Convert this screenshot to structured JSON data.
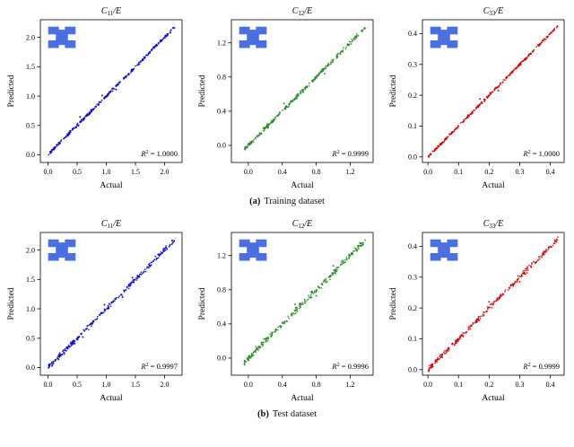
{
  "figure": {
    "background": "#ffffff",
    "icon_color": "#4a6fe3",
    "captions": [
      {
        "tag": "(a)",
        "text": "Training dataset"
      },
      {
        "tag": "(b)",
        "text": "Test dataset"
      }
    ]
  },
  "chart_data": [
    {
      "type": "scatter",
      "dataset": "training",
      "title": {
        "base": "C",
        "sub": "11",
        "rest": "/E"
      },
      "xlabel": "Actual",
      "ylabel": "Predicted",
      "tick_labels": [
        "0.0",
        "0.5",
        "1.0",
        "1.5",
        "2.0"
      ],
      "tick_values": [
        0,
        0.5,
        1,
        1.5,
        2
      ],
      "lim": [
        -0.13,
        2.3
      ],
      "color": "#0000cc",
      "r2": {
        "var": "R",
        "exp": "2",
        "eq": " = ",
        "value": "1.0000"
      },
      "scatter": {
        "n": 300,
        "min": 0.01,
        "max": 2.17,
        "noise": 0.012,
        "skew": 1.15,
        "seed": 7,
        "outliers": [
          [
            0.55,
            0.645
          ],
          [
            0.93,
            1.01
          ],
          [
            1.17,
            1.11
          ]
        ]
      }
    },
    {
      "type": "scatter",
      "dataset": "training",
      "title": {
        "base": "C",
        "sub": "12",
        "rest": "/E"
      },
      "xlabel": "Actual",
      "ylabel": "Predicted",
      "tick_labels": [
        "0.0",
        "0.4",
        "0.8",
        "1.2"
      ],
      "tick_values": [
        0,
        0.4,
        0.8,
        1.2
      ],
      "lim": [
        -0.2,
        1.47
      ],
      "color": "#228b22",
      "r2": {
        "var": "R",
        "exp": "2",
        "eq": " = ",
        "value": "0.9999"
      },
      "scatter": {
        "n": 300,
        "min": -0.05,
        "max": 1.38,
        "noise": 0.01,
        "skew": 1.1,
        "seed": 13,
        "outliers": [
          [
            0.42,
            0.49
          ],
          [
            0.9,
            0.84
          ]
        ]
      }
    },
    {
      "type": "scatter",
      "dataset": "training",
      "title": {
        "base": "C",
        "sub": "33",
        "rest": "/E"
      },
      "xlabel": "Actual",
      "ylabel": "Predicted",
      "tick_labels": [
        "0.0",
        "0.1",
        "0.2",
        "0.3",
        "0.4"
      ],
      "tick_values": [
        0,
        0.1,
        0.2,
        0.3,
        0.4
      ],
      "lim": [
        -0.018,
        0.445
      ],
      "color": "#cc0000",
      "r2": {
        "var": "R",
        "exp": "2",
        "eq": " = ",
        "value": "1.0000"
      },
      "scatter": {
        "n": 300,
        "min": 0.002,
        "max": 0.425,
        "noise": 0.002,
        "skew": 1.1,
        "seed": 21,
        "outliers": [
          [
            0.17,
            0.188
          ],
          [
            0.23,
            0.215
          ]
        ]
      }
    },
    {
      "type": "scatter",
      "dataset": "test",
      "title": {
        "base": "C",
        "sub": "11",
        "rest": "/E"
      },
      "xlabel": "Actual",
      "ylabel": "Predicted",
      "tick_labels": [
        "0.0",
        "0.5",
        "1.0",
        "1.5",
        "2.0"
      ],
      "tick_values": [
        0,
        0.5,
        1,
        1.5,
        2
      ],
      "lim": [
        -0.13,
        2.3
      ],
      "color": "#0000cc",
      "r2": {
        "var": "R",
        "exp": "2",
        "eq": " = ",
        "value": "0.9997"
      },
      "scatter": {
        "n": 280,
        "min": 0.01,
        "max": 2.17,
        "noise": 0.02,
        "skew": 1.15,
        "seed": 31,
        "outliers": [
          [
            0.97,
            1.07
          ],
          [
            1.28,
            1.2
          ],
          [
            1.45,
            1.53
          ],
          [
            0.6,
            0.52
          ]
        ]
      }
    },
    {
      "type": "scatter",
      "dataset": "test",
      "title": {
        "base": "C",
        "sub": "12",
        "rest": "/E"
      },
      "xlabel": "Actual",
      "ylabel": "Predicted",
      "tick_labels": [
        "0.0",
        "0.4",
        "0.8",
        "1.2"
      ],
      "tick_values": [
        0,
        0.4,
        0.8,
        1.2
      ],
      "lim": [
        -0.2,
        1.47
      ],
      "color": "#228b22",
      "r2": {
        "var": "R",
        "exp": "2",
        "eq": " = ",
        "value": "0.9996"
      },
      "scatter": {
        "n": 280,
        "min": -0.05,
        "max": 1.38,
        "noise": 0.016,
        "skew": 1.1,
        "seed": 37,
        "outliers": [
          [
            0.55,
            0.63
          ],
          [
            0.8,
            0.73
          ],
          [
            1.0,
            1.08
          ]
        ]
      }
    },
    {
      "type": "scatter",
      "dataset": "test",
      "title": {
        "base": "C",
        "sub": "33",
        "rest": "/E"
      },
      "xlabel": "Actual",
      "ylabel": "Predicted",
      "tick_labels": [
        "0.0",
        "0.1",
        "0.2",
        "0.3",
        "0.4"
      ],
      "tick_values": [
        0,
        0.1,
        0.2,
        0.3,
        0.4
      ],
      "lim": [
        -0.018,
        0.445
      ],
      "color": "#cc0000",
      "r2": {
        "var": "R",
        "exp": "2",
        "eq": " = ",
        "value": "0.9999"
      },
      "scatter": {
        "n": 280,
        "min": 0.002,
        "max": 0.425,
        "noise": 0.004,
        "skew": 1.1,
        "seed": 41,
        "outliers": [
          [
            0.2,
            0.22
          ],
          [
            0.3,
            0.285
          ]
        ]
      }
    }
  ]
}
